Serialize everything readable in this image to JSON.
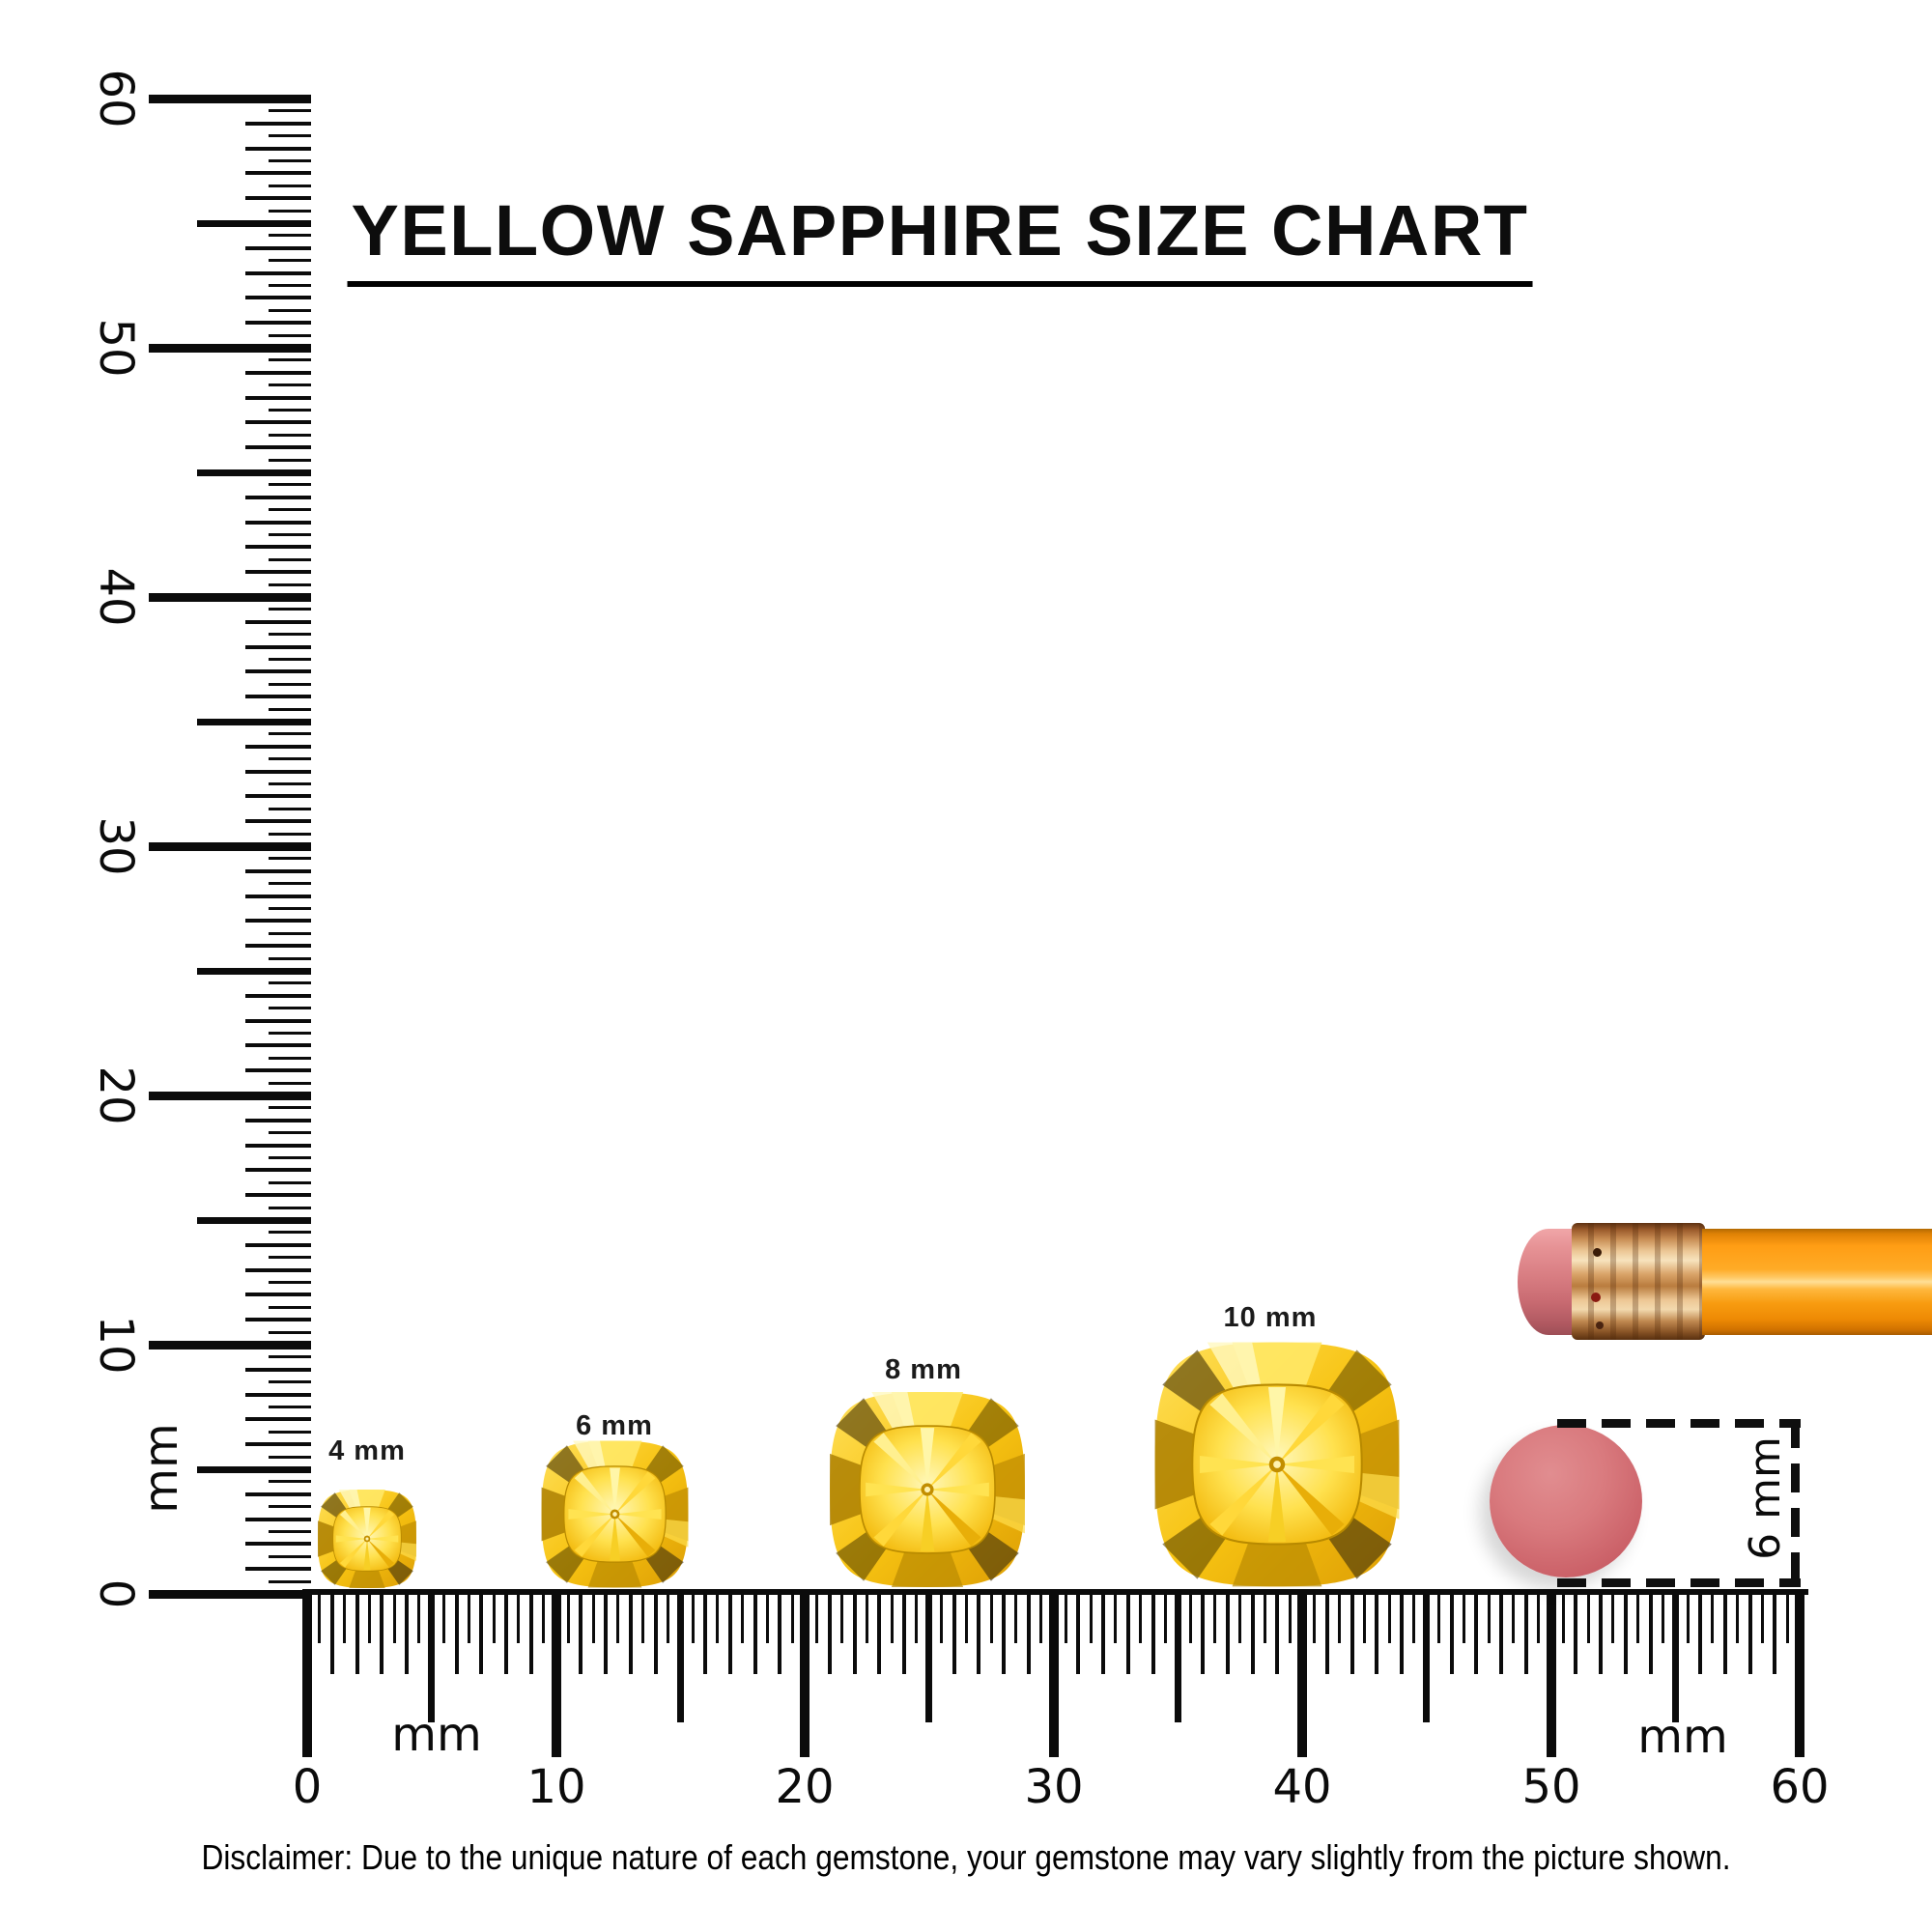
{
  "title": {
    "text": "YELLOW SAPPHIRE SIZE CHART"
  },
  "vertical_ruler": {
    "unit": "mm",
    "labels": [
      "60",
      "50",
      "40",
      "30",
      "20",
      "10",
      "0"
    ]
  },
  "horizontal_ruler": {
    "unit_left": "mm",
    "unit_right": "mm",
    "labels": [
      "0",
      "10",
      "20",
      "30",
      "40",
      "50",
      "60"
    ]
  },
  "gems": [
    {
      "label": "4 mm",
      "size_mm": 4
    },
    {
      "label": "6 mm",
      "size_mm": 6
    },
    {
      "label": "8 mm",
      "size_mm": 8
    },
    {
      "label": "10 mm",
      "size_mm": 10
    }
  ],
  "eraser": {
    "measurement_label": "6 mm"
  },
  "disclaimer": "Disclaimer: Due to the unique nature of each gemstone, your gemstone may vary slightly from the picture shown.",
  "colors": {
    "gem_gold": "#f6c511",
    "gem_highlight": "#fff6a8",
    "gem_shadow": "#54400a",
    "pencil_orange": "#ffa41e",
    "ferrule_copper": "#d9a368",
    "eraser_pink": "#d4767c",
    "ink": "#0b0b0b"
  }
}
